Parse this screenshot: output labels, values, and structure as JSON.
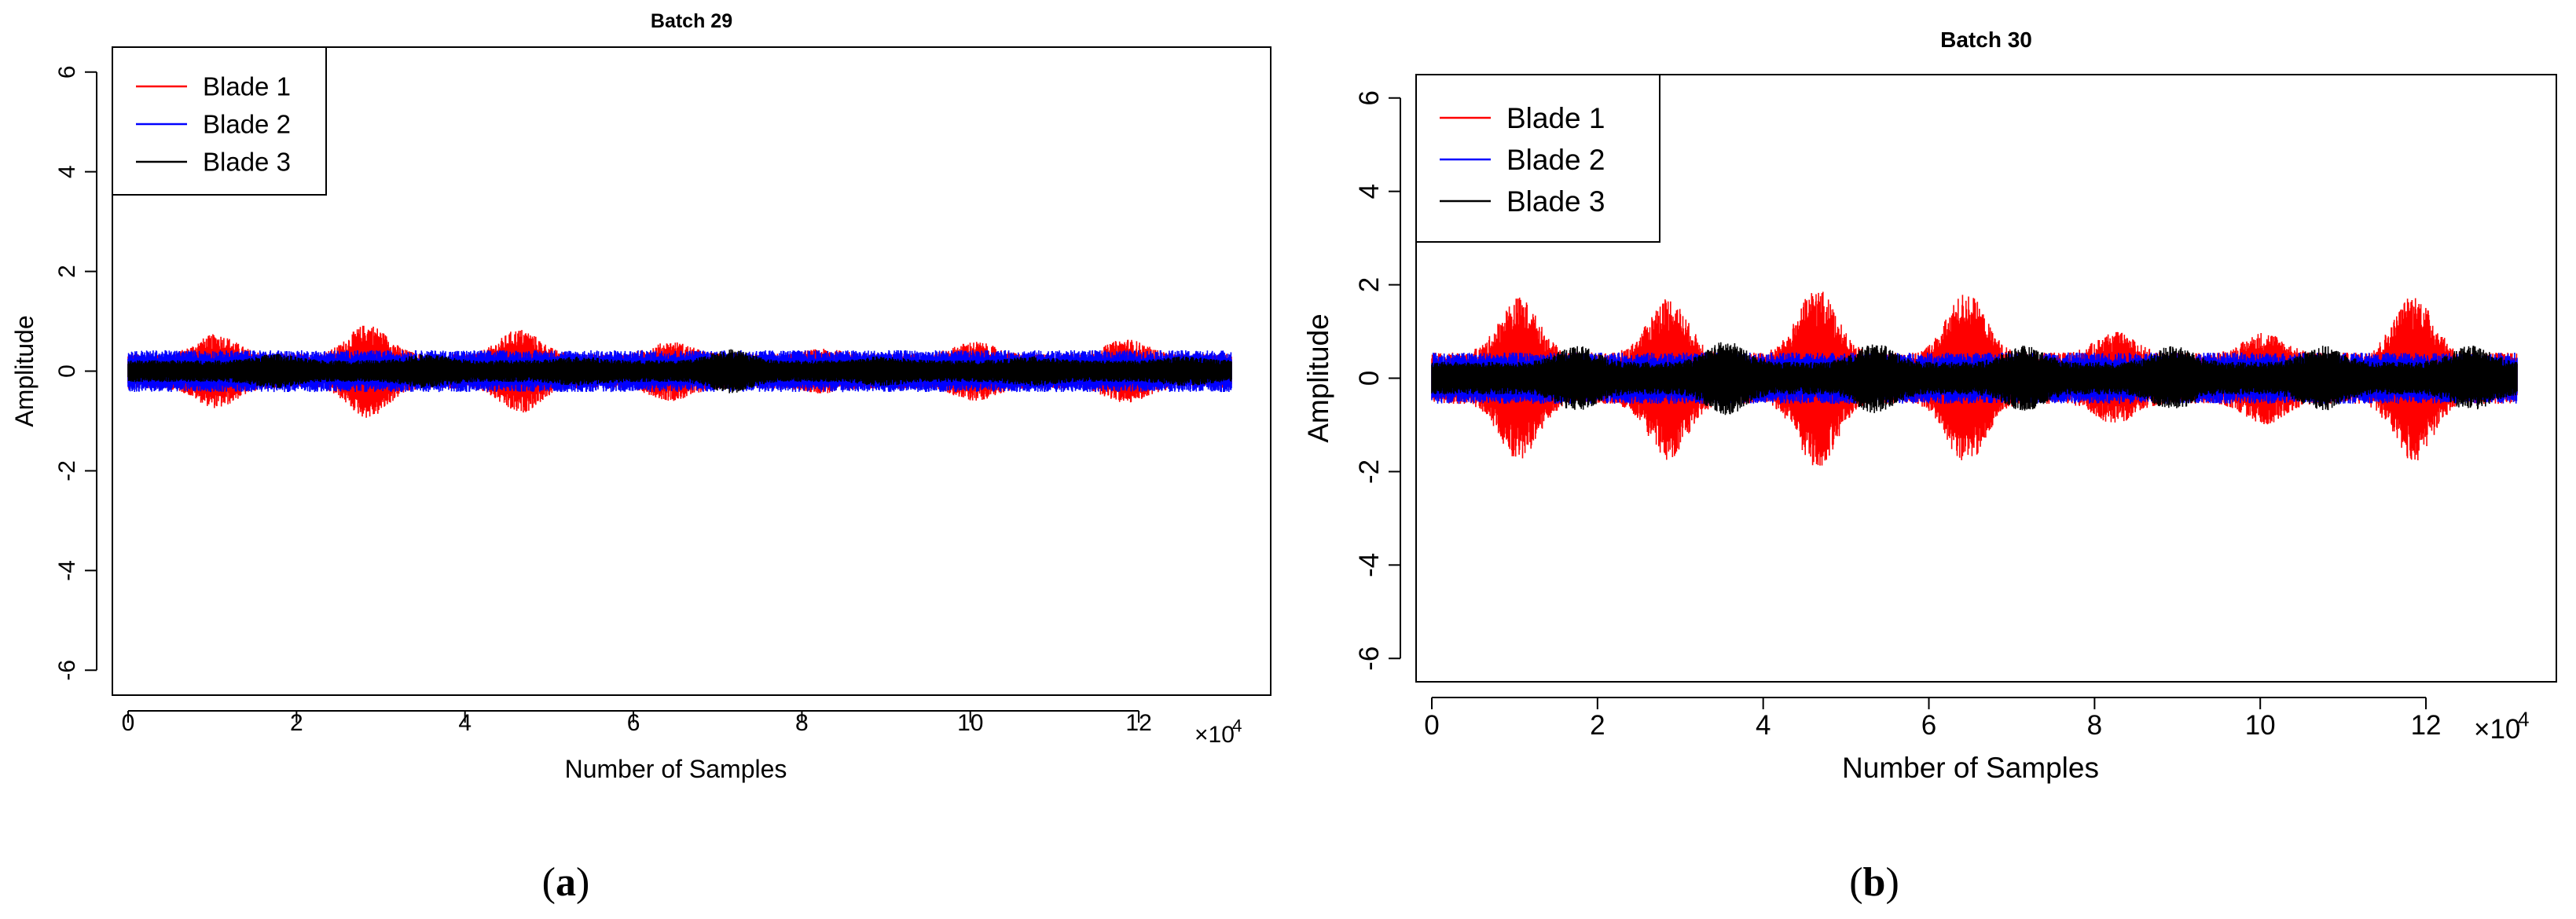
{
  "chart_data": [
    {
      "type": "line",
      "title": "Batch 29",
      "xlabel": "Number of Samples",
      "ylabel": "Amplitude",
      "xlim": [
        0,
        131000
      ],
      "ylim": [
        -6.5,
        6.5
      ],
      "x_ticks": [
        0,
        2,
        4,
        6,
        8,
        10,
        12
      ],
      "x_multiplier": "×10",
      "x_multiplier_exp": "4",
      "y_ticks": [
        -6,
        -4,
        -2,
        0,
        2,
        4,
        6
      ],
      "legend_position": "top-left",
      "caption": "(a)",
      "series": [
        {
          "name": "Blade 1",
          "color": "#ff0000",
          "bursts_x": [
            10500,
            28500,
            46500,
            64500,
            82500,
            100500,
            118500
          ],
          "burst_amplitude": [
            0.75,
            0.95,
            0.85,
            0.6,
            0.45,
            0.6,
            0.65
          ],
          "base_amplitude": 0.35
        },
        {
          "name": "Blade 2",
          "color": "#0000ff",
          "base_amplitude": 0.42
        },
        {
          "name": "Blade 3",
          "color": "#000000",
          "bursts_x": [
            17500,
            35500,
            53500,
            71500,
            89500,
            107500,
            125500
          ],
          "burst_amplitude": [
            0.35,
            0.35,
            0.3,
            0.45,
            0.3,
            0.3,
            0.3
          ],
          "base_amplitude": 0.22
        }
      ]
    },
    {
      "type": "line",
      "title": "Batch 30",
      "xlabel": "Number of Samples",
      "ylabel": "Amplitude",
      "xlim": [
        0,
        131000
      ],
      "ylim": [
        -6.5,
        6.5
      ],
      "x_ticks": [
        0,
        2,
        4,
        6,
        8,
        10,
        12
      ],
      "x_multiplier": "×10",
      "x_multiplier_exp": "4",
      "y_ticks": [
        -6,
        -4,
        -2,
        0,
        2,
        4,
        6
      ],
      "legend_position": "top-left",
      "caption": "(b)",
      "series": [
        {
          "name": "Blade 1",
          "color": "#ff0000",
          "bursts_x": [
            10500,
            28500,
            46500,
            64500,
            82500,
            100500,
            118500
          ],
          "burst_amplitude": [
            1.75,
            1.75,
            1.95,
            1.85,
            1.0,
            1.0,
            1.8
          ],
          "base_amplitude": 0.55
        },
        {
          "name": "Blade 2",
          "color": "#0000ff",
          "base_amplitude": 0.55
        },
        {
          "name": "Blade 3",
          "color": "#000000",
          "bursts_x": [
            17500,
            35500,
            53500,
            71500,
            89500,
            107500,
            125500
          ],
          "burst_amplitude": [
            0.7,
            0.8,
            0.75,
            0.7,
            0.7,
            0.7,
            0.7
          ],
          "base_amplitude": 0.35
        }
      ]
    }
  ]
}
